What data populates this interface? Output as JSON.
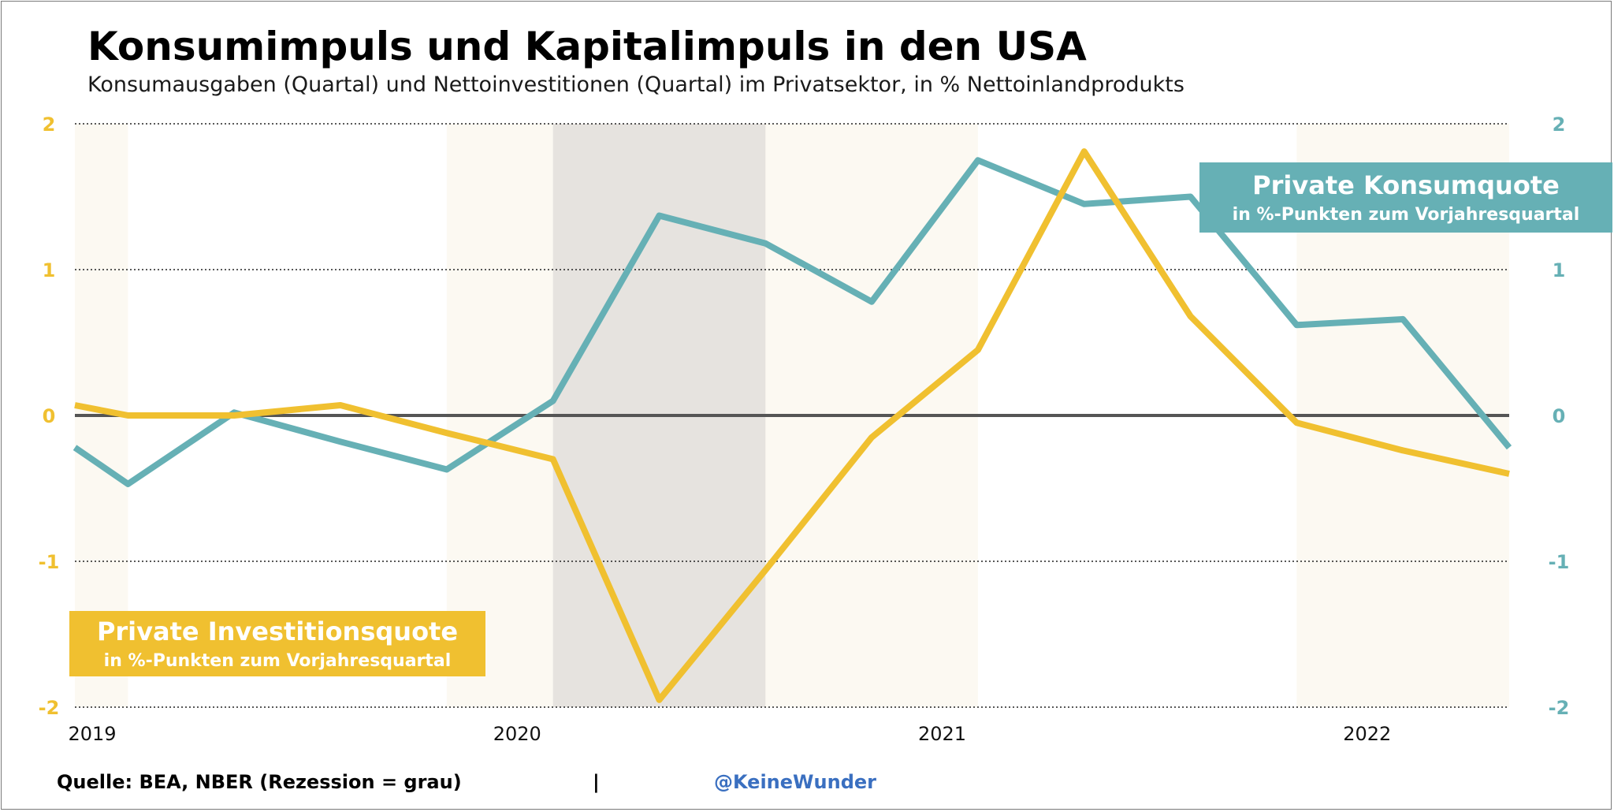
{
  "title": "Konsumimpuls und Kapitalimpuls in den USA",
  "subtitle": "Konsumausgaben (Quartal) und Nettoinvestitionen (Quartal) im Privatsektor, in % Nettoinlandprodukts",
  "footer": {
    "source": "Quelle: BEA, NBER (Rezession = grau)",
    "separator": "|",
    "handle": "@KeineWunder"
  },
  "colors": {
    "investment": "#f0c030",
    "consumption": "#66b0b5",
    "recession": "#e6e3df",
    "alt_band": "#fcf9f2",
    "zero_line": "#555555",
    "footer_handle": "#3a6fc0"
  },
  "chart_data": {
    "type": "line",
    "x_start": 2019.0,
    "x_end": 2022.375,
    "ylim": [
      -2,
      2
    ],
    "yticks": [
      2,
      1,
      0,
      -1,
      -2
    ],
    "ytick_labels": [
      "2",
      "1",
      "0",
      "-1",
      "-2"
    ],
    "xticks": [
      2019,
      2020,
      2021,
      2022
    ],
    "xtick_labels": [
      "2019",
      "2020",
      "2021",
      "2022"
    ],
    "grid": "horizontal dotted",
    "recession": [
      2020.125,
      2020.625
    ],
    "alt_bands": [
      [
        2019.0,
        2019.125
      ],
      [
        2019.875,
        2021.125
      ],
      [
        2021.875,
        2022.375
      ]
    ],
    "series": [
      {
        "name": "Private Investitionsquote",
        "label_title": "Private Investitionsquote",
        "label_sub": "in %-Punkten zum Vorjahresquartal",
        "axis": "left",
        "x": [
          2019.0,
          2019.125,
          2019.375,
          2019.625,
          2019.875,
          2020.125,
          2020.375,
          2020.625,
          2020.875,
          2021.125,
          2021.375,
          2021.625,
          2021.875,
          2022.125,
          2022.375
        ],
        "values": [
          0.07,
          0.0,
          0.0,
          0.07,
          -0.12,
          -0.3,
          -1.95,
          -1.06,
          -0.15,
          0.45,
          1.81,
          0.68,
          -0.05,
          -0.24,
          -0.4
        ]
      },
      {
        "name": "Private Konsumquote",
        "label_title": "Private Konsumquote",
        "label_sub": "in %-Punkten zum Vorjahresquartal",
        "axis": "right",
        "x": [
          2019.0,
          2019.125,
          2019.375,
          2019.625,
          2019.875,
          2020.125,
          2020.375,
          2020.625,
          2020.875,
          2021.125,
          2021.375,
          2021.625,
          2021.875,
          2022.125,
          2022.375
        ],
        "values": [
          -0.22,
          -0.47,
          0.02,
          -0.18,
          -0.37,
          0.1,
          1.37,
          1.18,
          0.78,
          1.75,
          1.45,
          1.5,
          0.62,
          0.66,
          -0.22
        ]
      }
    ]
  }
}
